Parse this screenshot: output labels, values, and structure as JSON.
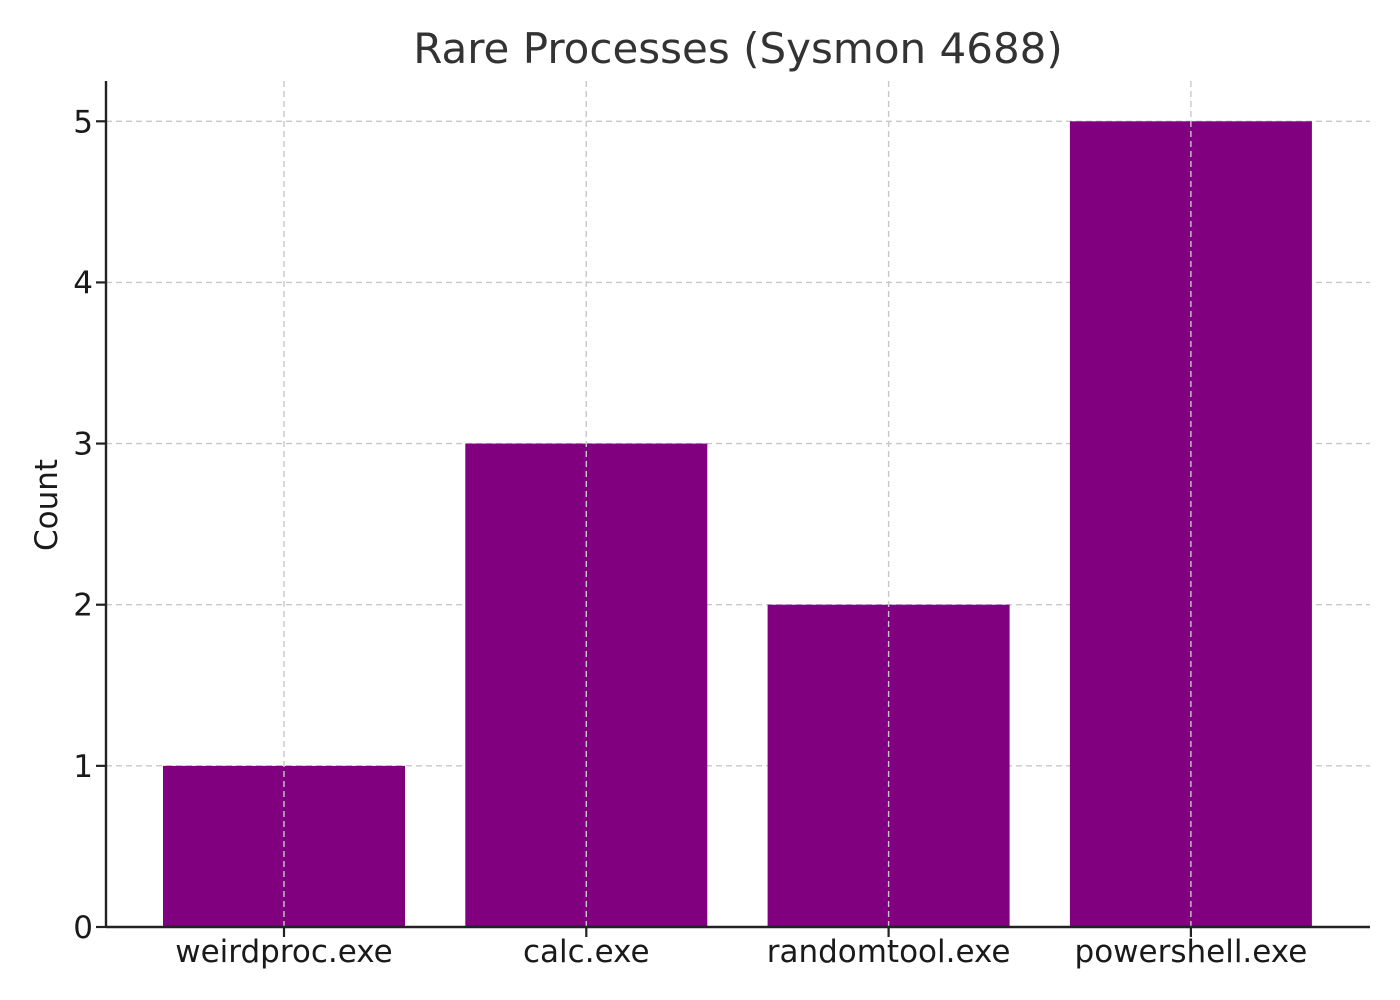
{
  "chart_data": {
    "type": "bar",
    "title": "Rare Processes (Sysmon 4688)",
    "xlabel": "",
    "ylabel": "Count",
    "categories": [
      "weirdproc.exe",
      "calc.exe",
      "randomtool.exe",
      "powershell.exe"
    ],
    "values": [
      1,
      3,
      2,
      5
    ],
    "ylim": [
      0,
      5.25
    ],
    "yticks": [
      "0",
      "1",
      "2",
      "3",
      "4",
      "5"
    ],
    "bar_color": "#800080",
    "grid": true,
    "legend": "none"
  }
}
